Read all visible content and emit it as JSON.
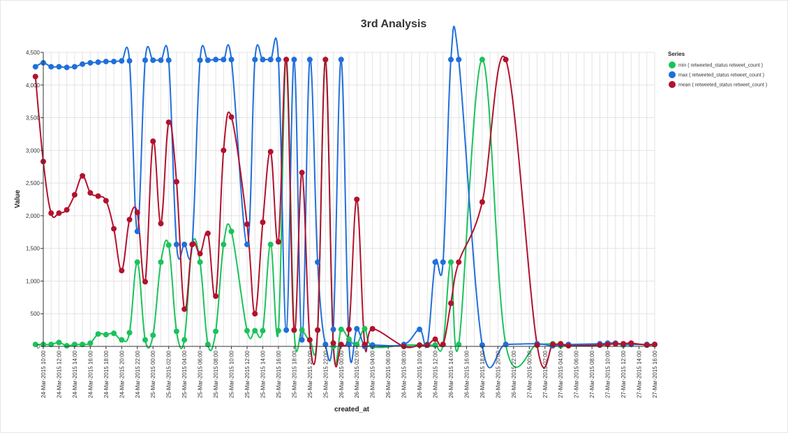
{
  "chart_data": {
    "type": "line",
    "title": "3rd Analysis",
    "xlabel": "created_at",
    "ylabel": "Value",
    "ylim": [
      0,
      4500
    ],
    "y_ticks": [
      0,
      500,
      1000,
      1500,
      2000,
      2500,
      3000,
      3500,
      4000,
      4500
    ],
    "y_tick_labels": [
      "0",
      "500",
      "1,000",
      "1,500",
      "2,000",
      "2,500",
      "3,000",
      "3,500",
      "4,000",
      "4,500"
    ],
    "x_range_hours": [
      "24-Mar-2015 10:00",
      "27-Mar-2015 16:00"
    ],
    "x_tick_labels": [
      "24-Mar-2015 10:00",
      "24-Mar-2015 12:00",
      "24-Mar-2015 14:00",
      "24-Mar-2015 16:00",
      "24-Mar-2015 18:00",
      "24-Mar-2015 20:00",
      "24-Mar-2015 22:00",
      "25-Mar-2015 00:00",
      "25-Mar-2015 02:00",
      "25-Mar-2015 04:00",
      "25-Mar-2015 06:00",
      "25-Mar-2015 08:00",
      "25-Mar-2015 10:00",
      "25-Mar-2015 12:00",
      "25-Mar-2015 14:00",
      "25-Mar-2015 16:00",
      "25-Mar-2015 18:00",
      "25-Mar-2015 20:00",
      "25-Mar-2015 22:00",
      "26-Mar-2015 00:00",
      "26-Mar-2015 02:00",
      "26-Mar-2015 04:00",
      "26-Mar-2015 06:00",
      "26-Mar-2015 08:00",
      "26-Mar-2015 10:00",
      "26-Mar-2015 12:00",
      "26-Mar-2015 14:00",
      "26-Mar-2015 16:00",
      "26-Mar-2015 18:00",
      "26-Mar-2015 20:00",
      "26-Mar-2015 22:00",
      "27-Mar-2015 00:00",
      "27-Mar-2015 02:00",
      "27-Mar-2015 04:00",
      "27-Mar-2015 06:00",
      "27-Mar-2015 08:00",
      "27-Mar-2015 10:00",
      "27-Mar-2015 12:00",
      "27-Mar-2015 14:00",
      "27-Mar-2015 16:00"
    ],
    "grid": true,
    "legend": {
      "title": "Series",
      "position": "top-right"
    },
    "x": [
      "24-Mar-2015 09:00",
      "24-Mar-2015 10:00",
      "24-Mar-2015 11:00",
      "24-Mar-2015 12:00",
      "24-Mar-2015 13:00",
      "24-Mar-2015 14:00",
      "24-Mar-2015 15:00",
      "24-Mar-2015 16:00",
      "24-Mar-2015 17:00",
      "24-Mar-2015 18:00",
      "24-Mar-2015 19:00",
      "24-Mar-2015 20:00",
      "24-Mar-2015 21:00",
      "24-Mar-2015 22:00",
      "24-Mar-2015 23:00",
      "25-Mar-2015 00:00",
      "25-Mar-2015 01:00",
      "25-Mar-2015 02:00",
      "25-Mar-2015 03:00",
      "25-Mar-2015 04:00",
      "25-Mar-2015 05:00",
      "25-Mar-2015 06:00",
      "25-Mar-2015 07:00",
      "25-Mar-2015 08:00",
      "25-Mar-2015 09:00",
      "25-Mar-2015 10:00",
      "25-Mar-2015 12:00",
      "25-Mar-2015 13:00",
      "25-Mar-2015 14:00",
      "25-Mar-2015 15:00",
      "25-Mar-2015 16:00",
      "25-Mar-2015 17:00",
      "25-Mar-2015 18:00",
      "25-Mar-2015 19:00",
      "25-Mar-2015 20:00",
      "25-Mar-2015 21:00",
      "25-Mar-2015 22:00",
      "25-Mar-2015 23:00",
      "26-Mar-2015 00:00",
      "26-Mar-2015 01:00",
      "26-Mar-2015 02:00",
      "26-Mar-2015 03:00",
      "26-Mar-2015 04:00",
      "26-Mar-2015 08:00",
      "26-Mar-2015 10:00",
      "26-Mar-2015 11:00",
      "26-Mar-2015 12:00",
      "26-Mar-2015 13:00",
      "26-Mar-2015 14:00",
      "26-Mar-2015 15:00",
      "26-Mar-2015 18:00",
      "26-Mar-2015 21:00",
      "27-Mar-2015 01:00",
      "27-Mar-2015 03:00",
      "27-Mar-2015 04:00",
      "27-Mar-2015 05:00",
      "27-Mar-2015 09:00",
      "27-Mar-2015 10:00",
      "27-Mar-2015 11:00",
      "27-Mar-2015 12:00",
      "27-Mar-2015 13:00",
      "27-Mar-2015 15:00",
      "27-Mar-2015 16:00"
    ],
    "series": [
      {
        "name": "min ( retweeted_status retweet_count )",
        "color": "#19c35a",
        "values": [
          30,
          30,
          30,
          60,
          10,
          30,
          30,
          50,
          190,
          180,
          200,
          100,
          210,
          1290,
          100,
          170,
          1290,
          1550,
          230,
          100,
          1560,
          1290,
          30,
          230,
          1560,
          1760,
          240,
          240,
          240,
          1560,
          240,
          4390,
          250,
          250,
          100,
          250,
          4390,
          0,
          260,
          110,
          30,
          270,
          0,
          20,
          20,
          20,
          20,
          30,
          1290,
          30,
          4390,
          30,
          30,
          40,
          10,
          20,
          30,
          30,
          40,
          20,
          30,
          30,
          30
        ]
      },
      {
        "name": "max ( retweeted_status retweet_count )",
        "color": "#1f6fdc",
        "values": [
          4280,
          4340,
          4280,
          4280,
          4270,
          4280,
          4320,
          4340,
          4350,
          4360,
          4360,
          4370,
          4370,
          1760,
          4380,
          4380,
          4380,
          4380,
          1560,
          1560,
          1560,
          4380,
          4380,
          4390,
          4390,
          4390,
          1560,
          4390,
          4390,
          4390,
          4390,
          250,
          4390,
          100,
          4390,
          1290,
          30,
          260,
          4390,
          30,
          270,
          0,
          20,
          30,
          260,
          30,
          1290,
          1290,
          4390,
          4390,
          20,
          30,
          40,
          10,
          30,
          30,
          40,
          50,
          50,
          30,
          30,
          30,
          30
        ]
      },
      {
        "name": "mean ( retweeted_status retweet_count )",
        "color": "#b3112d",
        "values": [
          4130,
          2830,
          2040,
          2040,
          2090,
          2320,
          2610,
          2350,
          2300,
          2230,
          1800,
          1160,
          1940,
          2050,
          990,
          3140,
          1880,
          3430,
          2520,
          570,
          1560,
          1420,
          1730,
          770,
          3000,
          3510,
          1870,
          500,
          1900,
          2980,
          1600,
          4390,
          250,
          2660,
          100,
          250,
          4390,
          50,
          30,
          260,
          2250,
          30,
          270,
          0,
          20,
          20,
          110,
          30,
          660,
          1290,
          2210,
          4390,
          20,
          30,
          40,
          10,
          20,
          30,
          40,
          40,
          50,
          20,
          30
        ]
      }
    ]
  }
}
